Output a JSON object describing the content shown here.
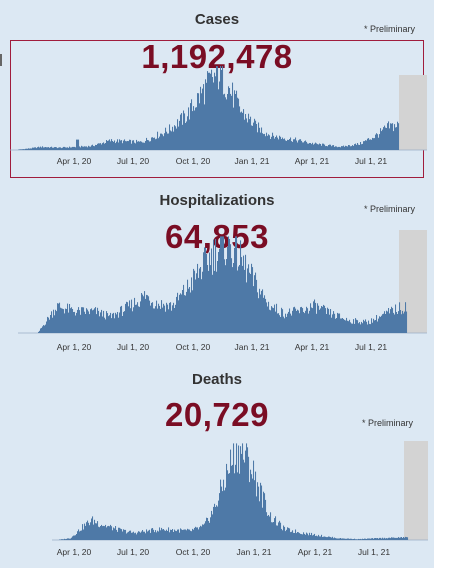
{
  "colors": {
    "background": "#dce8f3",
    "bars": "#4e79a7",
    "number": "#7a0d24",
    "preliminary_shade": "#d3d3d3",
    "focus_border": "#a01c3c"
  },
  "panels": [
    {
      "title": "Cases",
      "value": "1,192,478",
      "preliminary": "* Preliminary"
    },
    {
      "title": "Hospitalizations",
      "value": "64,853",
      "preliminary": "* Preliminary"
    },
    {
      "title": "Deaths",
      "value": "20,729",
      "preliminary": "* Preliminary"
    }
  ],
  "chart_data": [
    {
      "type": "bar",
      "series": "Cases",
      "x_range": [
        "2020-03-01",
        "2021-08-31"
      ],
      "x_ticks": [
        "Apr 1, 20",
        "Jul 1, 20",
        "Oct 1, 20",
        "Jan 1, 21",
        "Apr 1, 21",
        "Jul 1, 21"
      ],
      "preliminary_period": true,
      "shape_relative": [
        [
          0,
          0.0
        ],
        [
          0.04,
          0.02
        ],
        [
          0.07,
          0.04
        ],
        [
          0.12,
          0.03
        ],
        [
          0.2,
          0.05
        ],
        [
          0.25,
          0.12
        ],
        [
          0.33,
          0.1
        ],
        [
          0.4,
          0.25
        ],
        [
          0.45,
          0.45
        ],
        [
          0.48,
          0.68
        ],
        [
          0.51,
          0.88
        ],
        [
          0.535,
          1.0
        ],
        [
          0.56,
          0.78
        ],
        [
          0.59,
          0.5
        ],
        [
          0.63,
          0.3
        ],
        [
          0.67,
          0.18
        ],
        [
          0.72,
          0.14
        ],
        [
          0.78,
          0.08
        ],
        [
          0.85,
          0.04
        ],
        [
          0.9,
          0.08
        ],
        [
          0.94,
          0.18
        ],
        [
          0.975,
          0.3
        ],
        [
          1,
          0.32
        ]
      ]
    },
    {
      "type": "bar",
      "series": "Hospitalizations",
      "x_range": [
        "2020-03-01",
        "2021-08-31"
      ],
      "x_ticks": [
        "Apr 1, 20",
        "Jul 1, 20",
        "Oct 1, 20",
        "Jan 1, 21",
        "Apr 1, 21",
        "Jul 1, 21"
      ],
      "preliminary_period": true,
      "shape_relative": [
        [
          0,
          0.0
        ],
        [
          0.04,
          0.0
        ],
        [
          0.09,
          0.3
        ],
        [
          0.14,
          0.24
        ],
        [
          0.19,
          0.24
        ],
        [
          0.23,
          0.18
        ],
        [
          0.28,
          0.3
        ],
        [
          0.32,
          0.42
        ],
        [
          0.35,
          0.33
        ],
        [
          0.39,
          0.3
        ],
        [
          0.43,
          0.5
        ],
        [
          0.47,
          0.75
        ],
        [
          0.5,
          0.9
        ],
        [
          0.535,
          1.0
        ],
        [
          0.56,
          0.88
        ],
        [
          0.6,
          0.6
        ],
        [
          0.64,
          0.32
        ],
        [
          0.68,
          0.22
        ],
        [
          0.72,
          0.24
        ],
        [
          0.76,
          0.3
        ],
        [
          0.8,
          0.22
        ],
        [
          0.85,
          0.14
        ],
        [
          0.9,
          0.12
        ],
        [
          0.94,
          0.2
        ],
        [
          0.97,
          0.26
        ],
        [
          1,
          0.3
        ]
      ]
    },
    {
      "type": "bar",
      "series": "Deaths",
      "x_range": [
        "2020-03-01",
        "2021-08-31"
      ],
      "x_ticks": [
        "Apr 1, 20",
        "Jul 1, 20",
        "Oct 1, 20",
        "Jan 1, 21",
        "Apr 1, 21",
        "Jul 1, 21"
      ],
      "preliminary_period": true,
      "shape_relative": [
        [
          0,
          0.0
        ],
        [
          0.04,
          0.02
        ],
        [
          0.07,
          0.13
        ],
        [
          0.1,
          0.22
        ],
        [
          0.14,
          0.16
        ],
        [
          0.18,
          0.11
        ],
        [
          0.22,
          0.08
        ],
        [
          0.26,
          0.1
        ],
        [
          0.3,
          0.12
        ],
        [
          0.34,
          0.11
        ],
        [
          0.38,
          0.1
        ],
        [
          0.42,
          0.15
        ],
        [
          0.45,
          0.35
        ],
        [
          0.48,
          0.68
        ],
        [
          0.505,
          0.95
        ],
        [
          0.525,
          1.0
        ],
        [
          0.55,
          0.85
        ],
        [
          0.58,
          0.55
        ],
        [
          0.61,
          0.26
        ],
        [
          0.65,
          0.12
        ],
        [
          0.7,
          0.08
        ],
        [
          0.75,
          0.05
        ],
        [
          0.8,
          0.02
        ],
        [
          0.86,
          0.01
        ],
        [
          0.92,
          0.02
        ],
        [
          1,
          0.03
        ]
      ]
    }
  ]
}
